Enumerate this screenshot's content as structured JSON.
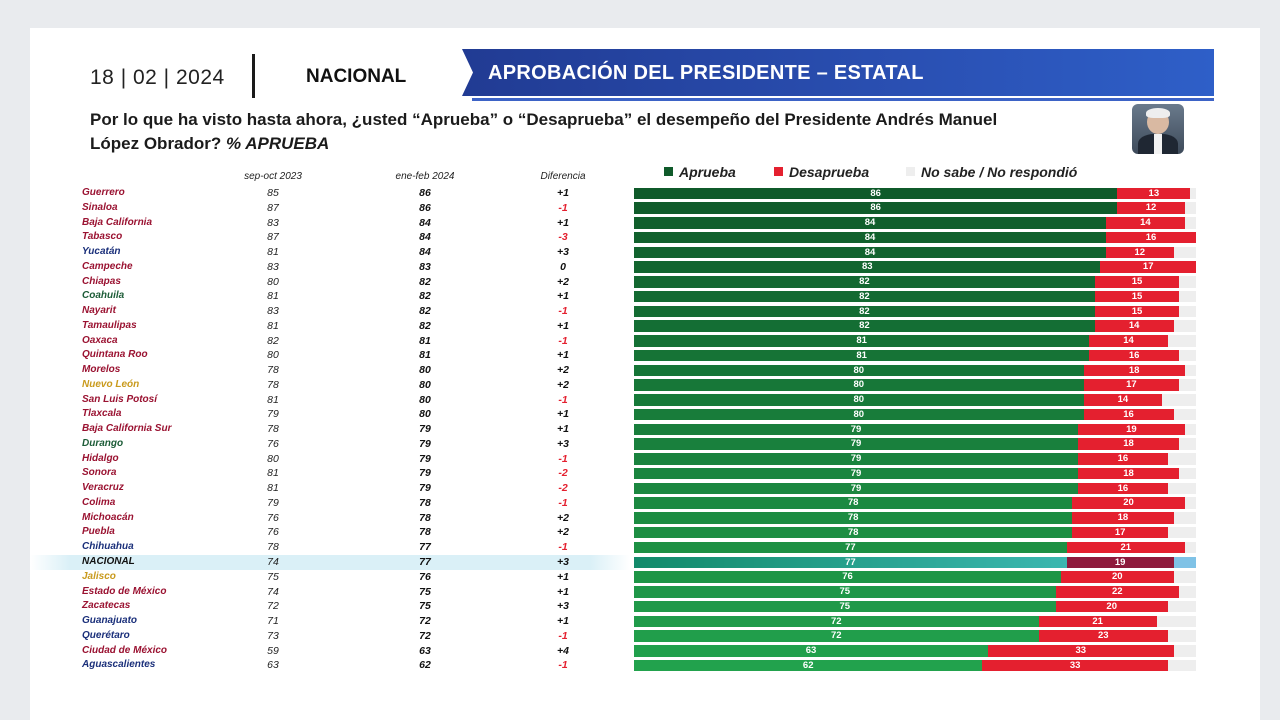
{
  "header": {
    "date": "18 | 02 | 2024",
    "section": "NACIONAL",
    "banner_title": "APROBACIÓN DEL PRESIDENTE – ESTATAL"
  },
  "question": {
    "text": "Por lo que ha visto hasta ahora, ¿usted “Aprueba” o “Desaprueba” el desempeño del Presidente Andrés Manuel López Obrador?",
    "emphasis": "% APRUEBA"
  },
  "colors": {
    "aprueba_dark": "#0f5a2a",
    "aprueba_light": "#22a24d",
    "desaprueba": "#e4202f",
    "no_sabe": "#eeeeee",
    "state_red": "#9a1231",
    "state_blue": "#1a2f7a",
    "state_green": "#1c5c37",
    "state_gold": "#c99a1c",
    "banner_blue": "#2548a8"
  },
  "chart_data": {
    "type": "bar",
    "columns": [
      "sep-oct 2023",
      "ene-feb 2024",
      "Diferencia"
    ],
    "legend": [
      "Aprueba",
      "Desaprueba",
      "No sabe / No respondió"
    ],
    "rows": [
      {
        "state": "Guerrero",
        "color": "red",
        "sep_oct_2023": "85",
        "ene_feb_2024": "86",
        "diferencia": "+1",
        "aprueba": 86,
        "desaprueba": 13
      },
      {
        "state": "Sinaloa",
        "color": "red",
        "sep_oct_2023": "87",
        "ene_feb_2024": "86",
        "diferencia": "-1",
        "aprueba": 86,
        "desaprueba": 12
      },
      {
        "state": "Baja California",
        "color": "red",
        "sep_oct_2023": "83",
        "ene_feb_2024": "84",
        "diferencia": "+1",
        "aprueba": 84,
        "desaprueba": 14
      },
      {
        "state": "Tabasco",
        "color": "red",
        "sep_oct_2023": "87",
        "ene_feb_2024": "84",
        "diferencia": "-3",
        "aprueba": 84,
        "desaprueba": 16
      },
      {
        "state": "Yucatán",
        "color": "blue",
        "sep_oct_2023": "81",
        "ene_feb_2024": "84",
        "diferencia": "+3",
        "aprueba": 84,
        "desaprueba": 12
      },
      {
        "state": "Campeche",
        "color": "red",
        "sep_oct_2023": "83",
        "ene_feb_2024": "83",
        "diferencia": "0",
        "aprueba": 83,
        "desaprueba": 17
      },
      {
        "state": "Chiapas",
        "color": "red",
        "sep_oct_2023": "80",
        "ene_feb_2024": "82",
        "diferencia": "+2",
        "aprueba": 82,
        "desaprueba": 15
      },
      {
        "state": "Coahuila",
        "color": "green",
        "sep_oct_2023": "81",
        "ene_feb_2024": "82",
        "diferencia": "+1",
        "aprueba": 82,
        "desaprueba": 15
      },
      {
        "state": "Nayarit",
        "color": "red",
        "sep_oct_2023": "83",
        "ene_feb_2024": "82",
        "diferencia": "-1",
        "aprueba": 82,
        "desaprueba": 15
      },
      {
        "state": "Tamaulipas",
        "color": "red",
        "sep_oct_2023": "81",
        "ene_feb_2024": "82",
        "diferencia": "+1",
        "aprueba": 82,
        "desaprueba": 14
      },
      {
        "state": "Oaxaca",
        "color": "red",
        "sep_oct_2023": "82",
        "ene_feb_2024": "81",
        "diferencia": "-1",
        "aprueba": 81,
        "desaprueba": 14
      },
      {
        "state": "Quintana Roo",
        "color": "red",
        "sep_oct_2023": "80",
        "ene_feb_2024": "81",
        "diferencia": "+1",
        "aprueba": 81,
        "desaprueba": 16
      },
      {
        "state": "Morelos",
        "color": "red",
        "sep_oct_2023": "78",
        "ene_feb_2024": "80",
        "diferencia": "+2",
        "aprueba": 80,
        "desaprueba": 18
      },
      {
        "state": "Nuevo León",
        "color": "gold",
        "sep_oct_2023": "78",
        "ene_feb_2024": "80",
        "diferencia": "+2",
        "aprueba": 80,
        "desaprueba": 17
      },
      {
        "state": "San Luis Potosí",
        "color": "red",
        "sep_oct_2023": "81",
        "ene_feb_2024": "80",
        "diferencia": "-1",
        "aprueba": 80,
        "desaprueba": 14
      },
      {
        "state": "Tlaxcala",
        "color": "red",
        "sep_oct_2023": "79",
        "ene_feb_2024": "80",
        "diferencia": "+1",
        "aprueba": 80,
        "desaprueba": 16
      },
      {
        "state": "Baja California Sur",
        "color": "red",
        "sep_oct_2023": "78",
        "ene_feb_2024": "79",
        "diferencia": "+1",
        "aprueba": 79,
        "desaprueba": 19
      },
      {
        "state": "Durango",
        "color": "green",
        "sep_oct_2023": "76",
        "ene_feb_2024": "79",
        "diferencia": "+3",
        "aprueba": 79,
        "desaprueba": 18
      },
      {
        "state": "Hidalgo",
        "color": "red",
        "sep_oct_2023": "80",
        "ene_feb_2024": "79",
        "diferencia": "-1",
        "aprueba": 79,
        "desaprueba": 16
      },
      {
        "state": "Sonora",
        "color": "red",
        "sep_oct_2023": "81",
        "ene_feb_2024": "79",
        "diferencia": "-2",
        "aprueba": 79,
        "desaprueba": 18
      },
      {
        "state": "Veracruz",
        "color": "red",
        "sep_oct_2023": "81",
        "ene_feb_2024": "79",
        "diferencia": "-2",
        "aprueba": 79,
        "desaprueba": 16
      },
      {
        "state": "Colima",
        "color": "red",
        "sep_oct_2023": "79",
        "ene_feb_2024": "78",
        "diferencia": "-1",
        "aprueba": 78,
        "desaprueba": 20
      },
      {
        "state": "Michoacán",
        "color": "red",
        "sep_oct_2023": "76",
        "ene_feb_2024": "78",
        "diferencia": "+2",
        "aprueba": 78,
        "desaprueba": 18
      },
      {
        "state": "Puebla",
        "color": "red",
        "sep_oct_2023": "76",
        "ene_feb_2024": "78",
        "diferencia": "+2",
        "aprueba": 78,
        "desaprueba": 17
      },
      {
        "state": "Chihuahua",
        "color": "blue",
        "sep_oct_2023": "78",
        "ene_feb_2024": "77",
        "diferencia": "-1",
        "aprueba": 77,
        "desaprueba": 21
      },
      {
        "state": "NACIONAL",
        "color": "black",
        "highlight": true,
        "sep_oct_2023": "74",
        "ene_feb_2024": "77",
        "diferencia": "+3",
        "aprueba": 77,
        "desaprueba": 19
      },
      {
        "state": "Jalisco",
        "color": "gold",
        "sep_oct_2023": "75",
        "ene_feb_2024": "76",
        "diferencia": "+1",
        "aprueba": 76,
        "desaprueba": 20
      },
      {
        "state": "Estado de México",
        "color": "red",
        "sep_oct_2023": "74",
        "ene_feb_2024": "75",
        "diferencia": "+1",
        "aprueba": 75,
        "desaprueba": 22
      },
      {
        "state": "Zacatecas",
        "color": "red",
        "sep_oct_2023": "72",
        "ene_feb_2024": "75",
        "diferencia": "+3",
        "aprueba": 75,
        "desaprueba": 20
      },
      {
        "state": "Guanajuato",
        "color": "blue",
        "sep_oct_2023": "71",
        "ene_feb_2024": "72",
        "diferencia": "+1",
        "aprueba": 72,
        "desaprueba": 21
      },
      {
        "state": "Querétaro",
        "color": "blue",
        "sep_oct_2023": "73",
        "ene_feb_2024": "72",
        "diferencia": "-1",
        "aprueba": 72,
        "desaprueba": 23
      },
      {
        "state": "Ciudad de México",
        "color": "red",
        "sep_oct_2023": "59",
        "ene_feb_2024": "63",
        "diferencia": "+4",
        "aprueba": 63,
        "desaprueba": 33
      },
      {
        "state": "Aguascalientes",
        "color": "blue",
        "sep_oct_2023": "63",
        "ene_feb_2024": "62",
        "diferencia": "-1",
        "aprueba": 62,
        "desaprueba": 33
      }
    ]
  }
}
